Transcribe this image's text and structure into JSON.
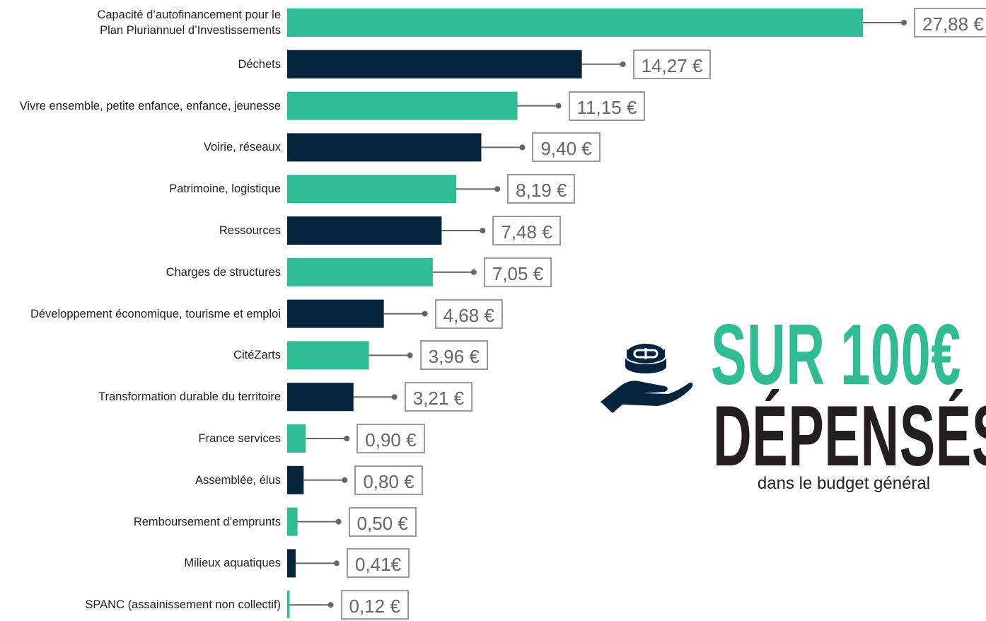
{
  "chart_data": {
    "type": "bar",
    "orientation": "horizontal",
    "title": "SUR 100€",
    "subtitle": "DÉPENSÉS",
    "note": "dans le budget général",
    "categories": [
      "Capacité d’autofinancement pour le\nPlan Pluriannuel d’Investissements",
      "Déchets",
      "Vivre ensemble, petite enfance, enfance, jeunesse",
      "Voirie, réseaux",
      "Patrimoine, logistique",
      "Ressources",
      "Charges de structures",
      "Développement économique, tourisme et emploi",
      "CitéZarts",
      "Transformation durable du territoire",
      "France services",
      "Assemblée, élus",
      "Remboursement d’emprunts",
      "Milieux aquatiques",
      "SPANC (assainissement non collectif)"
    ],
    "values": [
      27.88,
      14.27,
      11.15,
      9.4,
      8.19,
      7.48,
      7.05,
      4.68,
      3.96,
      3.21,
      0.9,
      0.8,
      0.5,
      0.41,
      0.12
    ],
    "value_labels": [
      "27,88 €",
      "14,27 €",
      "11,15 €",
      "9,40 €",
      "8,19 €",
      "7,48 €",
      "7,05 €",
      "4,68 €",
      "3,96 €",
      "3,21 €",
      "0,90 €",
      "0,80 €",
      "0,50 €",
      "0,41€",
      "0,12 €"
    ],
    "colors": [
      "#2fbb94",
      "#06243d",
      "#2fbb94",
      "#06243d",
      "#2fbb94",
      "#06243d",
      "#2fbb94",
      "#06243d",
      "#2fbb94",
      "#06243d",
      "#2fbb94",
      "#06243d",
      "#2fbb94",
      "#06243d",
      "#2fbb94"
    ]
  }
}
